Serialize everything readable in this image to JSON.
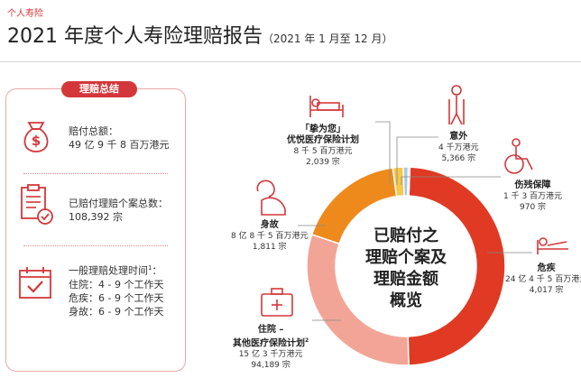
{
  "header": {
    "section": "个人寿险",
    "title": "2021 年度个人寿险理赔报告",
    "subtitle": "（2021 年 1 月至 12 月）"
  },
  "summary": {
    "heading": "理赔总结",
    "paid_label": "赔付总额：",
    "paid_value": "49 亿 9 千 8 百万港元",
    "cases_label": "已赔付理赔个案总数：",
    "cases_value": "108,392 宗",
    "time_label": "一般理赔处理时间",
    "time_footnote": "1",
    "time_rows": [
      "住院：4 - 9 个工作天",
      "危疾：6 - 9 个工作天",
      "身故：6 - 9 个工作天"
    ]
  },
  "center": {
    "lines": [
      "已赔付之",
      "理赔个案及",
      "理赔金额",
      "概览"
    ]
  },
  "callouts": {
    "premier": {
      "name_line1": "「挚为您」",
      "name_line2": "优悦医疗保险计划",
      "amount": "8 千 5 百万港元",
      "count": "2,039 宗"
    },
    "accident": {
      "name": "意外",
      "amount": "4 千万港元",
      "count": "5,366 宗"
    },
    "disability": {
      "name": "伤残保障",
      "amount": "1 千 3 百万港元",
      "count": "970 宗"
    },
    "death": {
      "name": "身故",
      "amount": "8 亿 8 千 5 百万港元",
      "count": "1,811 宗"
    },
    "critical": {
      "name": "危疾",
      "amount": "24 亿 4 千 5 百万港元",
      "count": "4,017 宗"
    },
    "hospital": {
      "name_line1": "住院 –",
      "name_line2": "其他医疗保险计划",
      "footnote": "2",
      "amount": "15 亿 3 千万港元",
      "count": "94,189 宗"
    }
  },
  "chart_data": {
    "type": "pie",
    "categories": [
      "危疾",
      "住院 – 其他医疗保险计划",
      "身故",
      "「挚为您」优悦医疗保险计划",
      "意外",
      "伤残保障"
    ],
    "values": [
      2445,
      1530,
      885,
      85,
      40,
      13
    ],
    "unit": "百万港元",
    "colors": [
      "#e03a24",
      "#f2a596",
      "#ee8a1c",
      "#f5c84a",
      "#a8c9e0",
      "#5a8fb8"
    ]
  }
}
